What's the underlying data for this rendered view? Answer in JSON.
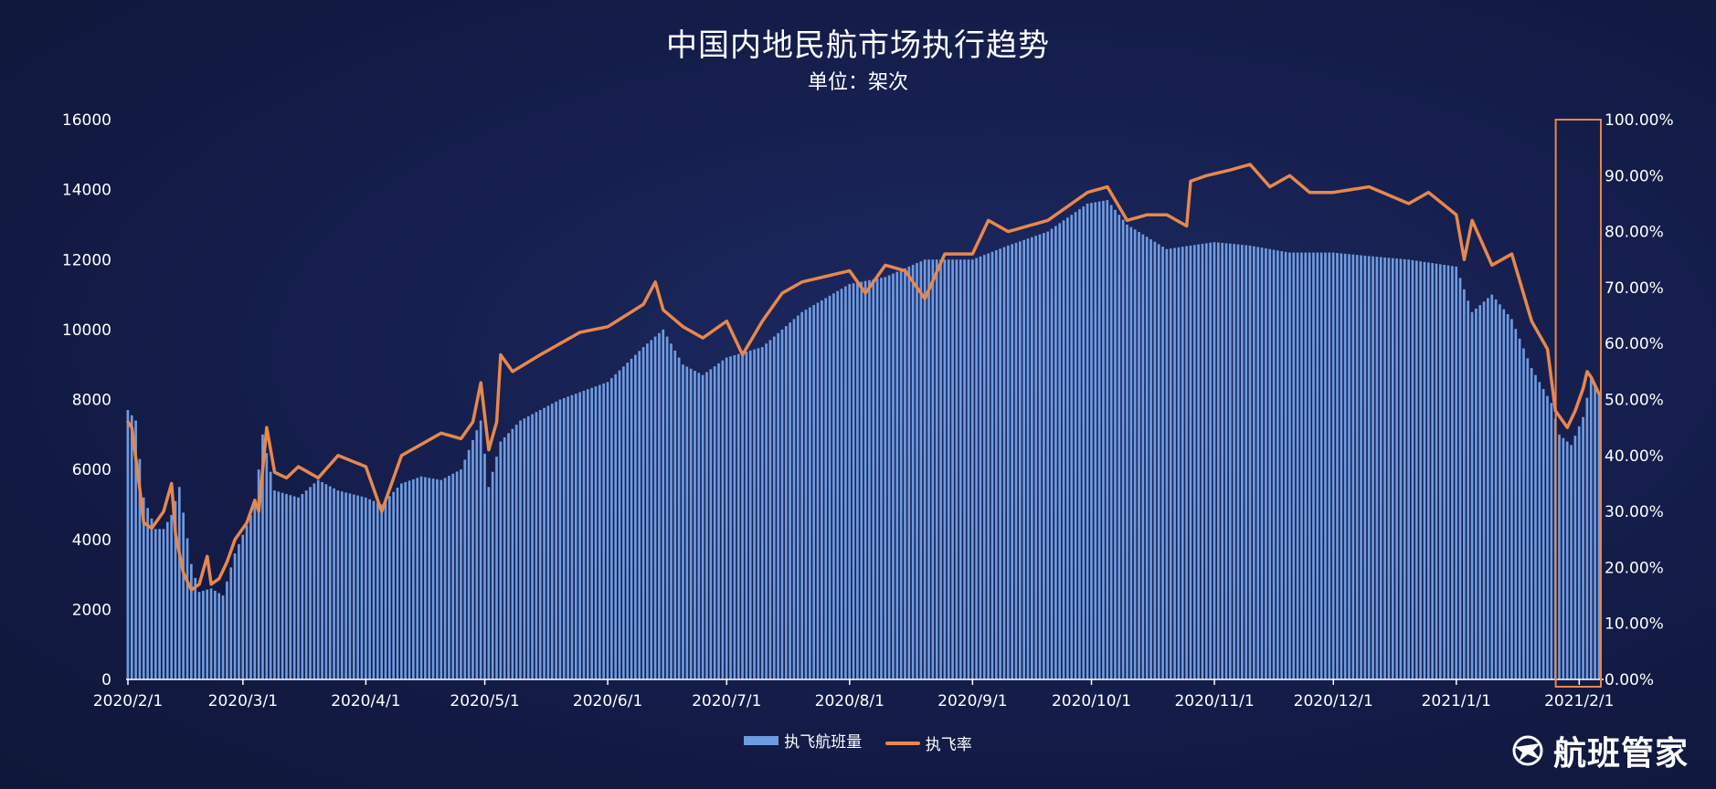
{
  "title": "中国内地民航市场执行趋势",
  "subtitle": "单位：架次",
  "legend": {
    "bars": "执飞航班量",
    "line": "执飞率"
  },
  "brand": "航班管家",
  "colors": {
    "bar": "#6f9be0",
    "line": "#e7884c",
    "highlight": "#e7884c",
    "axis": "#ffffff"
  },
  "chart_data": {
    "type": "bar+line",
    "x_start": "2020/2/1",
    "x_end": "2021/2/6",
    "x_ticks": [
      "2020/2/1",
      "2020/3/1",
      "2020/4/1",
      "2020/5/1",
      "2020/6/1",
      "2020/7/1",
      "2020/8/1",
      "2020/9/1",
      "2020/10/1",
      "2020/11/1",
      "2020/12/1",
      "2021/1/1",
      "2021/2/1"
    ],
    "y_left": {
      "range": [
        0,
        16000
      ],
      "ticks": [
        "0",
        "2000",
        "4000",
        "6000",
        "8000",
        "10000",
        "12000",
        "14000",
        "16000"
      ]
    },
    "y_right": {
      "range": [
        0,
        100
      ],
      "ticks": [
        "0.00%",
        "10.00%",
        "20.00%",
        "30.00%",
        "40.00%",
        "50.00%",
        "60.00%",
        "70.00%",
        "80.00%",
        "90.00%",
        "100.00%"
      ]
    },
    "highlight_range": [
      "2021/1/27",
      "2021/2/6"
    ],
    "series": [
      {
        "name": "执飞航班量",
        "kind": "bar",
        "axis": "left",
        "key_points": [
          [
            "2020/2/1",
            7700
          ],
          [
            "2020/2/3",
            7400
          ],
          [
            "2020/2/5",
            5200
          ],
          [
            "2020/2/8",
            4300
          ],
          [
            "2020/2/10",
            4300
          ],
          [
            "2020/2/12",
            4700
          ],
          [
            "2020/2/14",
            5500
          ],
          [
            "2020/2/17",
            3300
          ],
          [
            "2020/2/19",
            2500
          ],
          [
            "2020/2/22",
            2600
          ],
          [
            "2020/2/25",
            2400
          ],
          [
            "2020/2/28",
            3600
          ],
          [
            "2020/3/2",
            4400
          ],
          [
            "2020/3/4",
            5000
          ],
          [
            "2020/3/6",
            7000
          ],
          [
            "2020/3/9",
            5400
          ],
          [
            "2020/3/15",
            5200
          ],
          [
            "2020/3/20",
            5700
          ],
          [
            "2020/3/25",
            5400
          ],
          [
            "2020/4/1",
            5200
          ],
          [
            "2020/4/5",
            5000
          ],
          [
            "2020/4/10",
            5600
          ],
          [
            "2020/4/15",
            5800
          ],
          [
            "2020/4/20",
            5700
          ],
          [
            "2020/4/25",
            6000
          ],
          [
            "2020/4/30",
            7400
          ],
          [
            "2020/5/2",
            5500
          ],
          [
            "2020/5/5",
            6800
          ],
          [
            "2020/5/10",
            7400
          ],
          [
            "2020/5/20",
            8000
          ],
          [
            "2020/6/1",
            8500
          ],
          [
            "2020/6/10",
            9500
          ],
          [
            "2020/6/15",
            10000
          ],
          [
            "2020/6/20",
            9000
          ],
          [
            "2020/6/25",
            8700
          ],
          [
            "2020/7/1",
            9200
          ],
          [
            "2020/7/10",
            9500
          ],
          [
            "2020/7/20",
            10500
          ],
          [
            "2020/8/1",
            11300
          ],
          [
            "2020/8/10",
            11500
          ],
          [
            "2020/8/20",
            12000
          ],
          [
            "2020/9/1",
            12000
          ],
          [
            "2020/9/10",
            12400
          ],
          [
            "2020/9/20",
            12800
          ],
          [
            "2020/9/30",
            13600
          ],
          [
            "2020/10/5",
            13700
          ],
          [
            "2020/10/10",
            13000
          ],
          [
            "2020/10/20",
            12300
          ],
          [
            "2020/11/1",
            12500
          ],
          [
            "2020/11/10",
            12400
          ],
          [
            "2020/11/20",
            12200
          ],
          [
            "2020/12/1",
            12200
          ],
          [
            "2020/12/10",
            12100
          ],
          [
            "2020/12/20",
            12000
          ],
          [
            "2021/1/1",
            11800
          ],
          [
            "2021/1/5",
            10500
          ],
          [
            "2021/1/10",
            11000
          ],
          [
            "2021/1/15",
            10300
          ],
          [
            "2021/1/20",
            8900
          ],
          [
            "2021/1/25",
            7900
          ],
          [
            "2021/1/27",
            7000
          ],
          [
            "2021/1/30",
            6700
          ],
          [
            "2021/2/2",
            7500
          ],
          [
            "2021/2/4",
            8600
          ],
          [
            "2021/2/6",
            8200
          ]
        ]
      },
      {
        "name": "执飞率",
        "kind": "line",
        "axis": "right",
        "key_points": [
          [
            "2020/2/1",
            46
          ],
          [
            "2020/2/2",
            45
          ],
          [
            "2020/2/4",
            34
          ],
          [
            "2020/2/5",
            28
          ],
          [
            "2020/2/7",
            27
          ],
          [
            "2020/2/9",
            29
          ],
          [
            "2020/2/10",
            30
          ],
          [
            "2020/2/12",
            35
          ],
          [
            "2020/2/13",
            26
          ],
          [
            "2020/2/15",
            19
          ],
          [
            "2020/2/17",
            16
          ],
          [
            "2020/2/19",
            17
          ],
          [
            "2020/2/21",
            22
          ],
          [
            "2020/2/22",
            17
          ],
          [
            "2020/2/24",
            18
          ],
          [
            "2020/2/26",
            21
          ],
          [
            "2020/2/28",
            25
          ],
          [
            "2020/3/2",
            28
          ],
          [
            "2020/3/4",
            32
          ],
          [
            "2020/3/5",
            30
          ],
          [
            "2020/3/7",
            45
          ],
          [
            "2020/3/9",
            37
          ],
          [
            "2020/3/12",
            36
          ],
          [
            "2020/3/15",
            38
          ],
          [
            "2020/3/20",
            36
          ],
          [
            "2020/3/25",
            40
          ],
          [
            "2020/4/1",
            38
          ],
          [
            "2020/4/5",
            30
          ],
          [
            "2020/4/10",
            40
          ],
          [
            "2020/4/15",
            42
          ],
          [
            "2020/4/20",
            44
          ],
          [
            "2020/4/25",
            43
          ],
          [
            "2020/4/28",
            46
          ],
          [
            "2020/4/30",
            53
          ],
          [
            "2020/5/2",
            41
          ],
          [
            "2020/5/4",
            46
          ],
          [
            "2020/5/5",
            58
          ],
          [
            "2020/5/8",
            55
          ],
          [
            "2020/5/15",
            58
          ],
          [
            "2020/5/25",
            62
          ],
          [
            "2020/6/1",
            63
          ],
          [
            "2020/6/10",
            67
          ],
          [
            "2020/6/13",
            71
          ],
          [
            "2020/6/15",
            66
          ],
          [
            "2020/6/20",
            63
          ],
          [
            "2020/6/25",
            61
          ],
          [
            "2020/7/1",
            64
          ],
          [
            "2020/7/5",
            58
          ],
          [
            "2020/7/10",
            64
          ],
          [
            "2020/7/15",
            69
          ],
          [
            "2020/7/20",
            71
          ],
          [
            "2020/8/1",
            73
          ],
          [
            "2020/8/5",
            69
          ],
          [
            "2020/8/10",
            74
          ],
          [
            "2020/8/15",
            73
          ],
          [
            "2020/8/20",
            68
          ],
          [
            "2020/8/25",
            76
          ],
          [
            "2020/9/1",
            76
          ],
          [
            "2020/9/5",
            82
          ],
          [
            "2020/9/10",
            80
          ],
          [
            "2020/9/20",
            82
          ],
          [
            "2020/9/30",
            87
          ],
          [
            "2020/10/5",
            88
          ],
          [
            "2020/10/10",
            82
          ],
          [
            "2020/10/15",
            83
          ],
          [
            "2020/10/20",
            83
          ],
          [
            "2020/10/25",
            81
          ],
          [
            "2020/10/26",
            89
          ],
          [
            "2020/10/30",
            90
          ],
          [
            "2020/11/5",
            91
          ],
          [
            "2020/11/10",
            92
          ],
          [
            "2020/11/15",
            88
          ],
          [
            "2020/11/20",
            90
          ],
          [
            "2020/11/25",
            87
          ],
          [
            "2020/12/1",
            87
          ],
          [
            "2020/12/10",
            88
          ],
          [
            "2020/12/20",
            85
          ],
          [
            "2020/12/25",
            87
          ],
          [
            "2021/1/1",
            83
          ],
          [
            "2021/1/3",
            75
          ],
          [
            "2021/1/5",
            82
          ],
          [
            "2021/1/10",
            74
          ],
          [
            "2021/1/15",
            76
          ],
          [
            "2021/1/20",
            64
          ],
          [
            "2021/1/24",
            59
          ],
          [
            "2021/1/26",
            48
          ],
          [
            "2021/1/29",
            45
          ],
          [
            "2021/1/31",
            48
          ],
          [
            "2021/2/2",
            52
          ],
          [
            "2021/2/3",
            55
          ],
          [
            "2021/2/4",
            54
          ],
          [
            "2021/2/6",
            51
          ]
        ]
      }
    ]
  }
}
